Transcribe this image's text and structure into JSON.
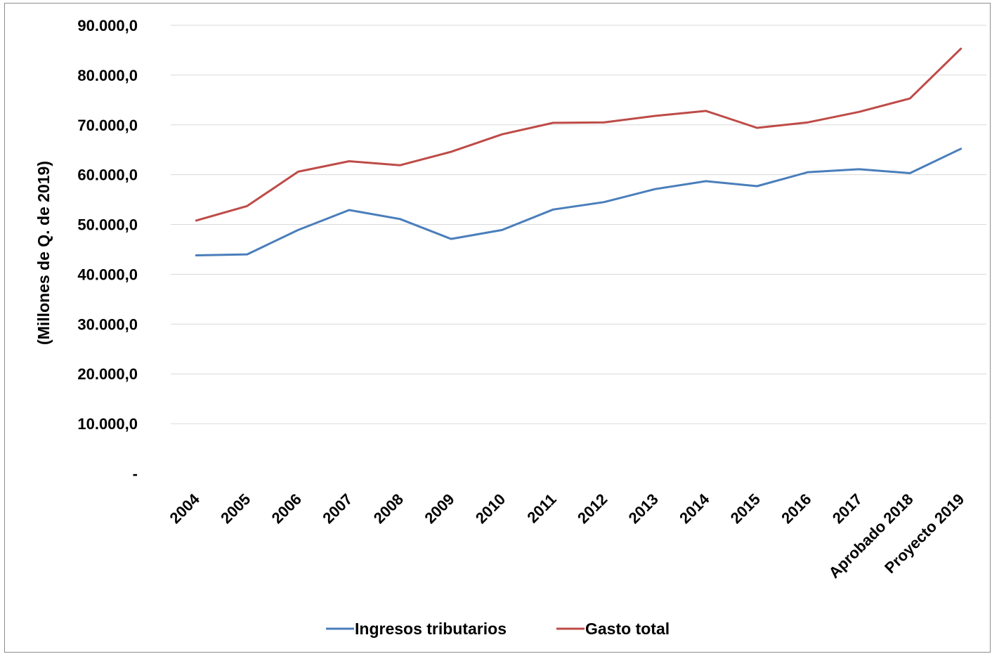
{
  "chart_data": {
    "type": "line",
    "title": "",
    "xlabel": "",
    "ylabel": "(Millones de Q. de 2019)",
    "ylim": [
      0,
      90000
    ],
    "yticks": [
      {
        "value": 0,
        "label": "-"
      },
      {
        "value": 10000,
        "label": "10.000,0"
      },
      {
        "value": 20000,
        "label": "20.000,0"
      },
      {
        "value": 30000,
        "label": "30.000,0"
      },
      {
        "value": 40000,
        "label": "40.000,0"
      },
      {
        "value": 50000,
        "label": "50.000,0"
      },
      {
        "value": 60000,
        "label": "60.000,0"
      },
      {
        "value": 70000,
        "label": "70.000,0"
      },
      {
        "value": 80000,
        "label": "80.000,0"
      },
      {
        "value": 90000,
        "label": "90.000,0"
      }
    ],
    "grid": true,
    "legend_position": "bottom",
    "categories": [
      "2004",
      "2005",
      "2006",
      "2007",
      "2008",
      "2009",
      "2010",
      "2011",
      "2012",
      "2013",
      "2014",
      "2015",
      "2016",
      "2017",
      "Aprobado 2018",
      "Proyecto 2019"
    ],
    "series": [
      {
        "name": "Ingresos tributarios",
        "color": "#4a7ebb",
        "values": [
          43800,
          44000,
          48900,
          52900,
          51100,
          47100,
          48900,
          53000,
          54500,
          57100,
          58700,
          57700,
          60500,
          61100,
          60300,
          65200
        ]
      },
      {
        "name": "Gasto total",
        "color": "#be4b48",
        "values": [
          50800,
          53700,
          60600,
          62700,
          61900,
          64600,
          68100,
          70400,
          70500,
          71800,
          72800,
          69400,
          70500,
          72600,
          75300,
          85300
        ]
      }
    ]
  }
}
